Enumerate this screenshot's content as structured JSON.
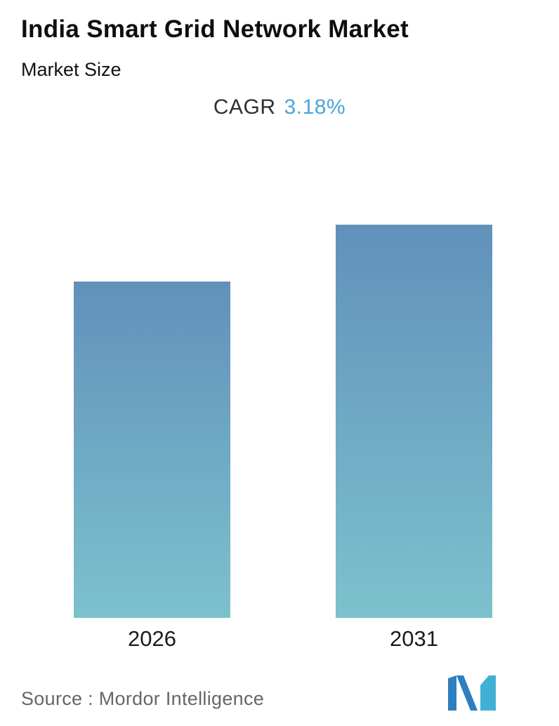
{
  "header": {
    "title": "India Smart Grid Network Market",
    "subtitle": "Market Size",
    "cagr_label": "CAGR",
    "cagr_value": "3.18%"
  },
  "chart_data": {
    "type": "bar",
    "title": "India Smart Grid Network Market",
    "subtitle": "Market Size",
    "categories": [
      "2026",
      "2031"
    ],
    "values": [
      1.0,
      1.17
    ],
    "value_note": "No y-axis or data labels shown; values are relative bar heights (2026 normalized to 1.00), consistent with CAGR 3.18% over 2026-2031",
    "cagr": "3.18%",
    "xlabel": "",
    "ylabel": "",
    "grid": false,
    "legend": "none"
  },
  "footer": {
    "source_text": "Source :  Mordor Intelligence",
    "logo_name": "mordor-intelligence-logo"
  },
  "colors": {
    "bar-top": "#6191bb",
    "bar-bottom": "#7dc1cd",
    "accent-blue": "#4ba5d9",
    "title-color": "#0e0e0e",
    "source-color": "#666666",
    "logo-blue": "#2d7fc1",
    "logo-teal": "#41b0d5"
  }
}
